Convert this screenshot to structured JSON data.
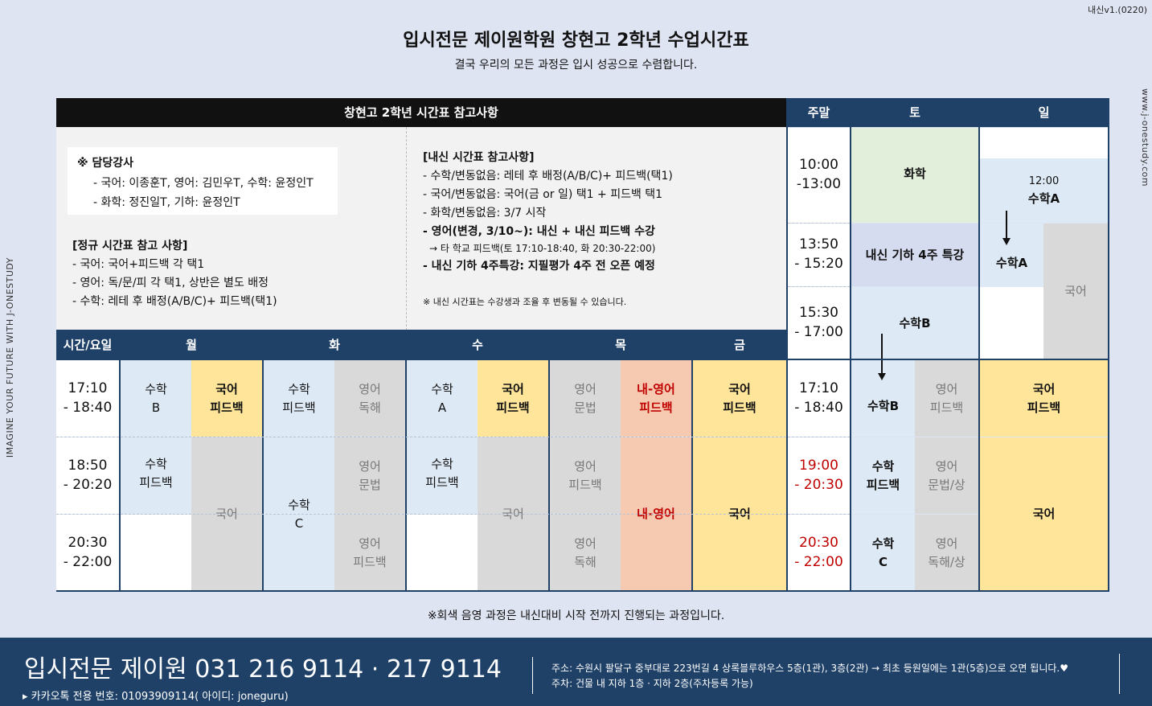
{
  "version": "내신v1.(0220)",
  "side_url": "www.j-onestudy.com",
  "side_slogan": "IMAGINE YOUR FUTURE WITH J-ONESTUDY",
  "title": "입시전문 제이원학원 창현고 2학년 수업시간표",
  "subtitle": "결국 우리의 모든 과정은 입시 성공으로 수렴합니다.",
  "headers": {
    "notes": "창현고 2학년 시간표 참고사항",
    "weekend": "주말",
    "sat": "토",
    "sun": "일",
    "timeday": "시간/요일",
    "mon": "월",
    "tue": "화",
    "wed": "수",
    "thu": "목",
    "fri": "금"
  },
  "lecturers": {
    "title": "※ 담당강사",
    "line1": "- 국어: 이종훈T,   영어: 김민우T,   수학: 윤정인T",
    "line2": "- 화학: 정진일T,   기하: 윤정인T"
  },
  "regular_notes": {
    "title": "[정규 시간표 참고 사항]",
    "line1": "- 국어: 국어+피드백 각 택1",
    "line2": "- 영어: 독/문/피 각 택1, 상반은 별도 배정",
    "line3": "- 수학: 레테 후 배정(A/B/C)+ 피드백(택1)"
  },
  "naesin_notes": {
    "title": "[내신 시간표 참고사항]",
    "line1": "- 수학/변동없음: 레테 후 배정(A/B/C)+ 피드백(택1)",
    "line2": "- 국어/변동없음: 국어(금 or 일) 택1 + 피드백 택1",
    "line3": "- 화학/변동없음: 3/7 시작",
    "line4": "- 영어(변경, 3/10~): 내신 + 내신 피드백 수강",
    "line5": "→ 타 학교 피드백(토 17:10-18:40, 화 20:30-22:00)",
    "line6": "- 내신 기하 4주특강: 지필평가 4주 전 오픈 예정",
    "note": "※ 내신 시간표는 수강생과 조율 후 변동될 수 있습니다."
  },
  "weekday_times": {
    "t1": "17:10\n- 18:40",
    "t2": "18:50\n- 20:20",
    "t3": "20:30\n- 22:00"
  },
  "weekend_times": {
    "t1": "10:00\n-13:00",
    "t2": "13:50\n- 15:20",
    "t3": "15:30\n- 17:00",
    "t4": "17:10\n- 18:40",
    "t5": "19:00\n- 20:30",
    "t6": "20:30\n- 22:00"
  },
  "mon": {
    "a1": "수학\nB",
    "a2": "수학\n피드백",
    "b1": "국어\n피드백",
    "b2": "국어"
  },
  "tue": {
    "a1": "수학\n피드백",
    "a2": "수학\nC",
    "b1": "영어\n독해",
    "b2": "영어\n문법",
    "b3": "영어\n피드백"
  },
  "wed": {
    "a1": "수학\nA",
    "a2": "수학\n피드백",
    "b1": "국어\n피드백",
    "b2": "국어"
  },
  "thu": {
    "a1": "영어\n문법",
    "a2": "영어\n피드백",
    "a3": "영어\n독해",
    "b1": "내-영어\n피드백",
    "b2": "내-영어"
  },
  "fri": {
    "a1": "국어\n피드백",
    "a2": "국어"
  },
  "sat": {
    "chem": "화학",
    "geo": "내신 기하 4주 특강",
    "mathB_top": "수학B",
    "mathB": "수학B",
    "fb": "수학\n피드백",
    "mathC": "수학\nC",
    "eng1": "영어\n피드백",
    "eng2": "영어\n문법/상",
    "eng3": "영어\n독해/상"
  },
  "sun": {
    "time": "12:00",
    "mathA_top": "수학A",
    "mathA": "수학A",
    "kor_gray": "국어",
    "kor_fb": "국어\n피드백",
    "kor": "국어"
  },
  "footnote": "※회색 음영 과정은 내신대비 시작 전까지 진행되는 과정입니다.",
  "footer": {
    "phone": "입시전문 제이원 031 216 9114 · 217 9114",
    "kakao": "▸ 카카오톡 전용 번호: 01093909114( 아이디: joneguru)",
    "address": "주소: 수원시 팔달구 중부대로 223번길 4 상록블루하우스 5층(1관), 3층(2관) → 최초 등원일에는 1관(5층)으로 오면 됩니다.♥",
    "parking": "주차: 건물 내 지하 1층 · 지하 2층(주차등록 가능)"
  },
  "colors": {
    "header": "#1f4168",
    "math_blue": "#dde9f5",
    "gray": "#d9d9d9",
    "korean_yellow": "#ffe599",
    "naesin_salmon": "#f6c9b1",
    "chem_green": "#e2efdb",
    "geo_lavender": "#d6dcf0",
    "red_text": "#c00000"
  }
}
